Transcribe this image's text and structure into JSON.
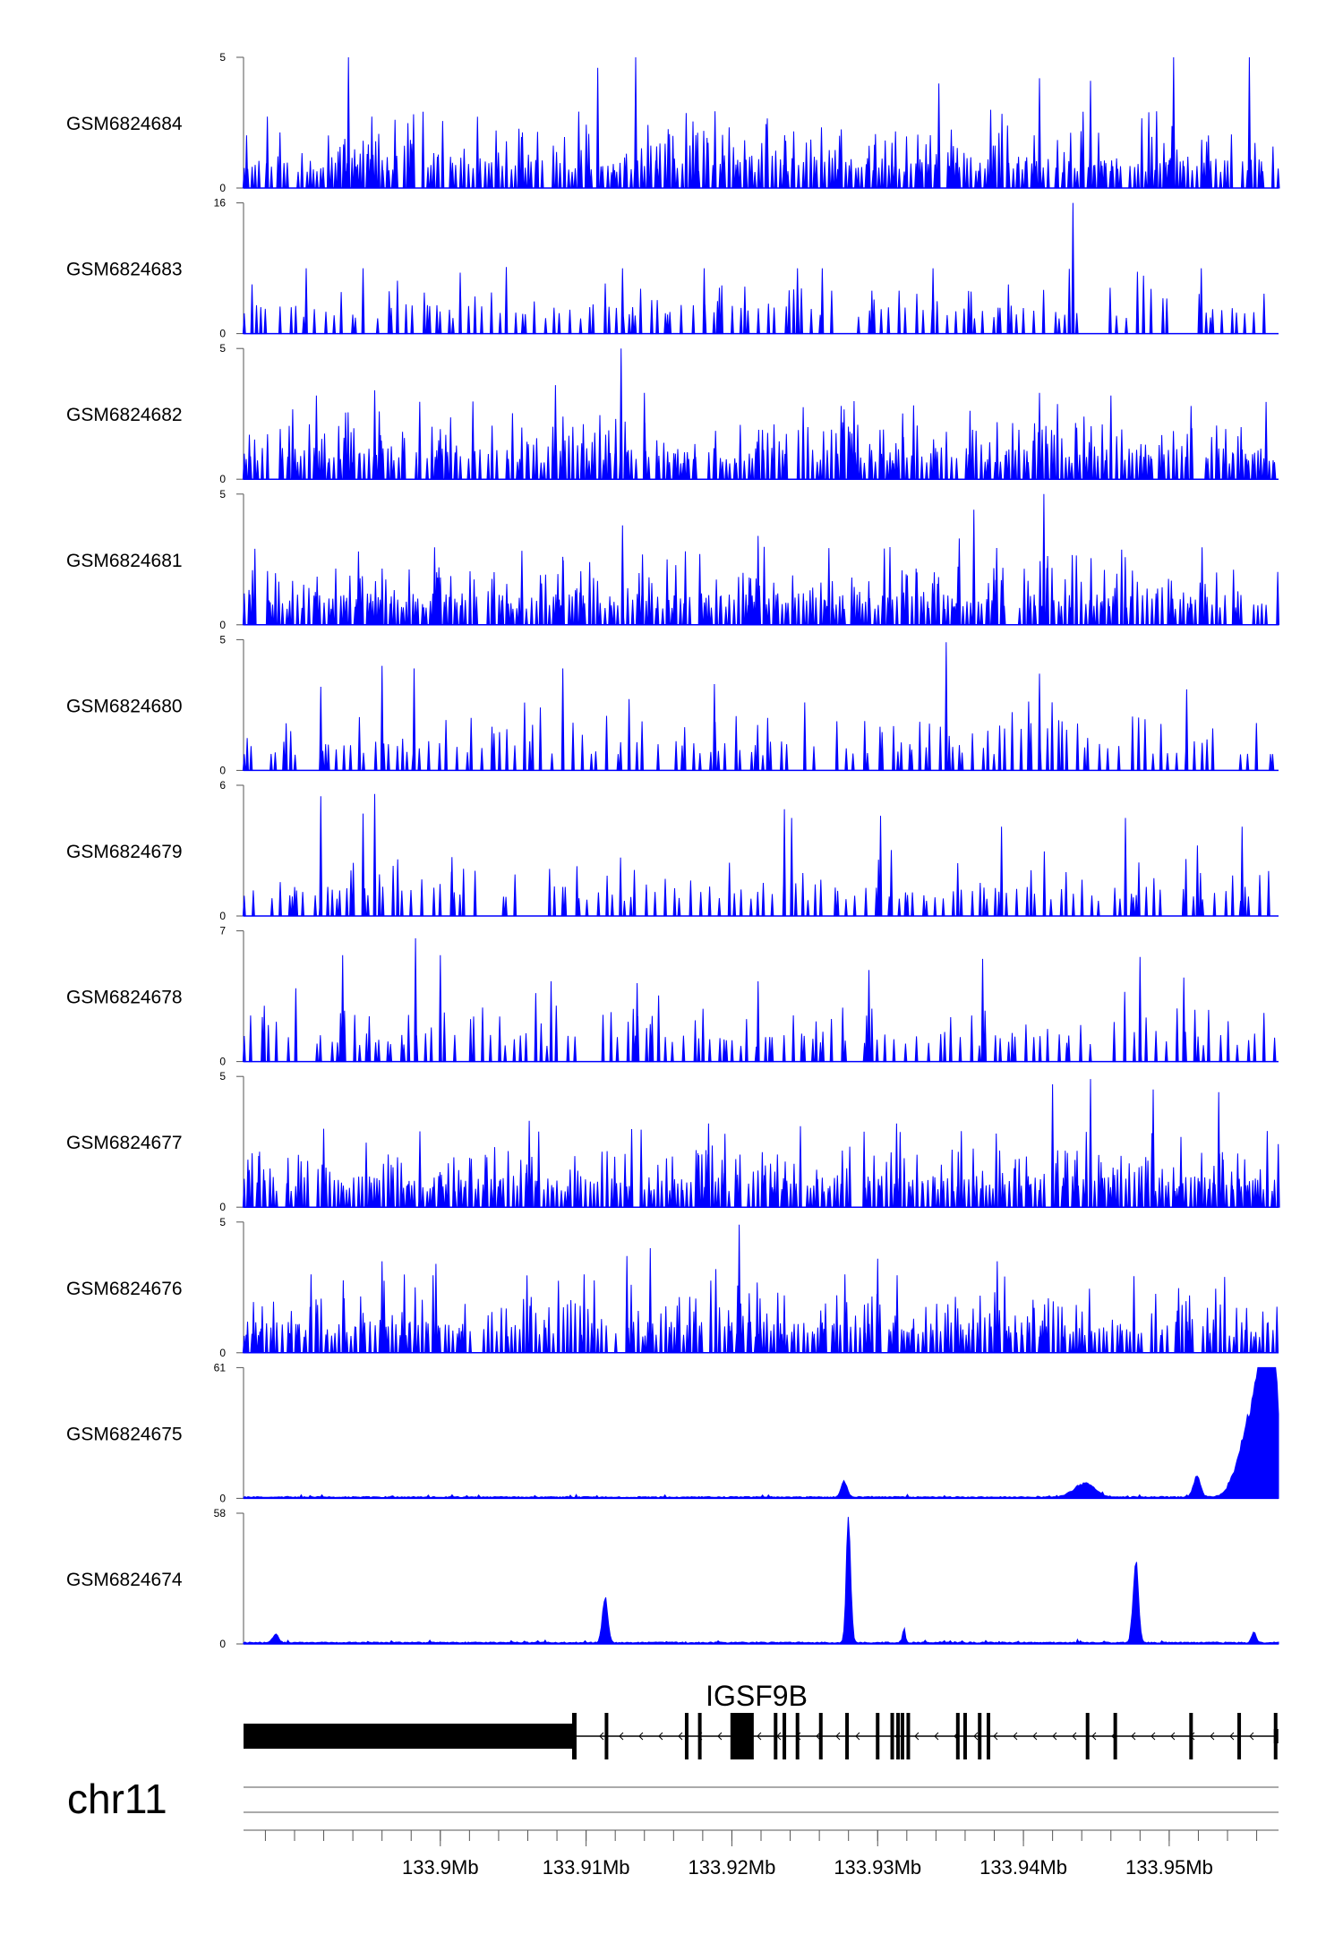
{
  "chart_data": {
    "type": "area",
    "title": "",
    "chromosome": "chr11",
    "gene": "IGSF9B",
    "xlabel": "",
    "ylabel": "",
    "xlim": [
      133.8865,
      133.9575
    ],
    "x_unit": "Mb",
    "x_ticks": [
      133.9,
      133.91,
      133.92,
      133.93,
      133.94,
      133.95
    ],
    "x_tick_labels": [
      "133.9Mb",
      "133.91Mb",
      "133.92Mb",
      "133.93Mb",
      "133.94Mb",
      "133.95Mb"
    ],
    "x_minor_step": 0.002,
    "color": "#0000ff",
    "tracks": [
      {
        "name": "GSM6824684",
        "ymax": 5,
        "ymax_label": "5",
        "ymin_label": "0",
        "kind": "sparse",
        "seed": 11,
        "peaks": [
          [
            133.8937,
            5
          ],
          [
            133.9108,
            4.6
          ],
          [
            133.9134,
            5
          ],
          [
            133.9342,
            4
          ],
          [
            133.9411,
            4.2
          ],
          [
            133.9446,
            4.1
          ],
          [
            133.9503,
            5
          ],
          [
            133.9555,
            5
          ]
        ]
      },
      {
        "name": "GSM6824683",
        "ymax": 16,
        "ymax_label": "16",
        "ymin_label": "0",
        "kind": "wide",
        "seed": 23,
        "peaks": [
          [
            133.8908,
            8
          ],
          [
            133.8947,
            8
          ],
          [
            133.9125,
            8
          ],
          [
            133.9181,
            8
          ],
          [
            133.9245,
            8
          ],
          [
            133.9262,
            8
          ],
          [
            133.9338,
            8
          ],
          [
            133.9434,
            16
          ],
          [
            133.9522,
            8
          ]
        ]
      },
      {
        "name": "GSM6824682",
        "ymax": 5,
        "ymax_label": "5",
        "ymin_label": "0",
        "kind": "sparse",
        "seed": 37,
        "peaks": [
          [
            133.8915,
            3.2
          ],
          [
            133.8955,
            3.4
          ],
          [
            133.9079,
            3.6
          ],
          [
            133.9124,
            5
          ],
          [
            133.914,
            3.3
          ],
          [
            133.9411,
            3.3
          ],
          [
            133.946,
            3.2
          ],
          [
            133.9515,
            2.8
          ]
        ]
      },
      {
        "name": "GSM6824681",
        "ymax": 5,
        "ymax_label": "5",
        "ymin_label": "0",
        "kind": "sparse",
        "seed": 41,
        "peaks": [
          [
            133.8999,
            2.2
          ],
          [
            133.9084,
            2.6
          ],
          [
            133.9125,
            3.8
          ],
          [
            133.9218,
            3.4
          ],
          [
            133.9356,
            3.3
          ],
          [
            133.9366,
            4.4
          ],
          [
            133.9414,
            5
          ],
          [
            133.9491,
            1.2
          ]
        ]
      },
      {
        "name": "GSM6824680",
        "ymax": 5,
        "ymax_label": "5",
        "ymin_label": "0",
        "kind": "wide",
        "seed": 53,
        "peaks": [
          [
            133.8918,
            3.2
          ],
          [
            133.896,
            4
          ],
          [
            133.8982,
            3.9
          ],
          [
            133.9084,
            3.9
          ],
          [
            133.9188,
            3.3
          ],
          [
            133.925,
            2.6
          ],
          [
            133.9347,
            4.9
          ],
          [
            133.9411,
            3.7
          ],
          [
            133.9512,
            3.1
          ]
        ]
      },
      {
        "name": "GSM6824679",
        "ymax": 6,
        "ymax_label": "6",
        "ymin_label": "0",
        "kind": "wide",
        "seed": 67,
        "peaks": [
          [
            133.8918,
            5.5
          ],
          [
            133.8947,
            4.7
          ],
          [
            133.8955,
            5.6
          ],
          [
            133.9008,
            2.7
          ],
          [
            133.9236,
            4.9
          ],
          [
            133.9241,
            4.5
          ],
          [
            133.9302,
            4.6
          ],
          [
            133.9385,
            4.1
          ],
          [
            133.947,
            4.5
          ],
          [
            133.955,
            4.1
          ]
        ]
      },
      {
        "name": "GSM6824678",
        "ymax": 7,
        "ymax_label": "7",
        "ymin_label": "0",
        "kind": "wide",
        "seed": 71,
        "peaks": [
          [
            133.8933,
            5.7
          ],
          [
            133.8983,
            6.6
          ],
          [
            133.9,
            5.7
          ],
          [
            133.9076,
            4.3
          ],
          [
            133.9135,
            4.2
          ],
          [
            133.9218,
            4.3
          ],
          [
            133.9294,
            4.9
          ],
          [
            133.9372,
            5.5
          ],
          [
            133.948,
            5.6
          ],
          [
            133.951,
            4.5
          ]
        ]
      },
      {
        "name": "GSM6824677",
        "ymax": 5,
        "ymax_label": "5",
        "ymin_label": "0",
        "kind": "sparse",
        "seed": 83,
        "peaks": [
          [
            133.892,
            3
          ],
          [
            133.8986,
            2.9
          ],
          [
            133.9061,
            3.3
          ],
          [
            133.9184,
            3.2
          ],
          [
            133.9247,
            3.1
          ],
          [
            133.9313,
            3.2
          ],
          [
            133.942,
            4.7
          ],
          [
            133.9446,
            4.9
          ],
          [
            133.9489,
            4.5
          ],
          [
            133.9534,
            4.4
          ]
        ]
      },
      {
        "name": "GSM6824676",
        "ymax": 5,
        "ymax_label": "5",
        "ymin_label": "0",
        "kind": "sparse",
        "seed": 97,
        "peaks": [
          [
            133.896,
            3.5
          ],
          [
            133.8997,
            3.4
          ],
          [
            133.9128,
            3.7
          ],
          [
            133.9144,
            4
          ],
          [
            133.9205,
            4.9
          ],
          [
            133.9189,
            3.2
          ],
          [
            133.93,
            3.6
          ],
          [
            133.9382,
            3.5
          ],
          [
            133.9538,
            2.9
          ]
        ]
      },
      {
        "name": "GSM6824675",
        "ymax": 61,
        "ymax_label": "61",
        "ymin_label": "0",
        "kind": "signal",
        "seed": 101,
        "peaks": [
          [
            133.9277,
            8,
            0.0002
          ],
          [
            133.9442,
            7,
            0.0007
          ],
          [
            133.9519,
            10,
            0.00025
          ],
          [
            133.9556,
            38,
            0.0008
          ],
          [
            133.9566,
            61,
            0.0005
          ],
          [
            133.9571,
            55,
            0.00035
          ]
        ]
      },
      {
        "name": "GSM6824674",
        "ymax": 58,
        "ymax_label": "58",
        "ymin_label": "0",
        "kind": "signal",
        "seed": 113,
        "peaks": [
          [
            133.8887,
            4,
            0.0002
          ],
          [
            133.9113,
            22,
            0.00018
          ],
          [
            133.928,
            58,
            0.00015
          ],
          [
            133.9318,
            6,
            0.0001
          ],
          [
            133.9477,
            38,
            0.00018
          ],
          [
            133.9558,
            5,
            0.00015
          ]
        ]
      }
    ],
    "gene_model": {
      "name": "IGSF9B",
      "strand": "-",
      "utr_block": [
        133.8865,
        133.9091
      ],
      "exons": [
        133.9114,
        133.9169,
        133.9178,
        133.9202,
        133.9211,
        133.923,
        133.9236,
        133.9245,
        133.9261,
        133.9279,
        133.93,
        133.931,
        133.9314,
        133.9317,
        133.9321,
        133.9355,
        133.936,
        133.937,
        133.9376,
        133.9444,
        133.9463,
        133.9515,
        133.9548
      ],
      "thick_block": [
        133.9199,
        133.9215
      ],
      "tss": 133.9573
    }
  }
}
